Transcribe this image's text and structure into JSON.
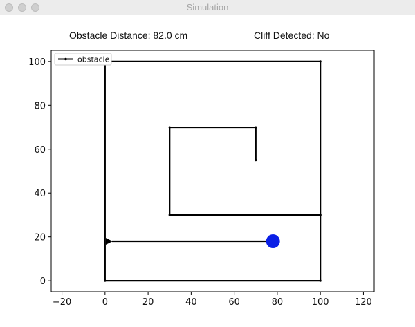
{
  "window": {
    "title": "Simulation"
  },
  "status": {
    "obstacle_distance": "Obstacle Distance: 82.0 cm",
    "cliff_detected": "Cliff Detected: No"
  },
  "chart_data": {
    "type": "line",
    "xlim": [
      -25,
      125
    ],
    "ylim": [
      -5,
      105
    ],
    "x_ticks": [
      -20,
      0,
      20,
      40,
      60,
      80,
      100,
      120
    ],
    "y_ticks": [
      0,
      20,
      40,
      60,
      80,
      100
    ],
    "grid": false,
    "legend": {
      "placement": "top-left",
      "entries": [
        "obstacle"
      ]
    },
    "series": [
      {
        "name": "obstacle",
        "color": "#000000",
        "points": [
          [
            70,
            55
          ],
          [
            70,
            70
          ],
          [
            30,
            70
          ],
          [
            30,
            30
          ],
          [
            100,
            30
          ],
          [
            100,
            100
          ],
          [
            0,
            100
          ],
          [
            0,
            0
          ],
          [
            100,
            0
          ],
          [
            100,
            30
          ]
        ]
      }
    ],
    "robot": {
      "x": 78,
      "y": 18,
      "color": "#0a1fe6"
    },
    "heading_arrow": {
      "from": [
        78,
        18
      ],
      "to": [
        0,
        18
      ],
      "color": "#000000"
    }
  }
}
